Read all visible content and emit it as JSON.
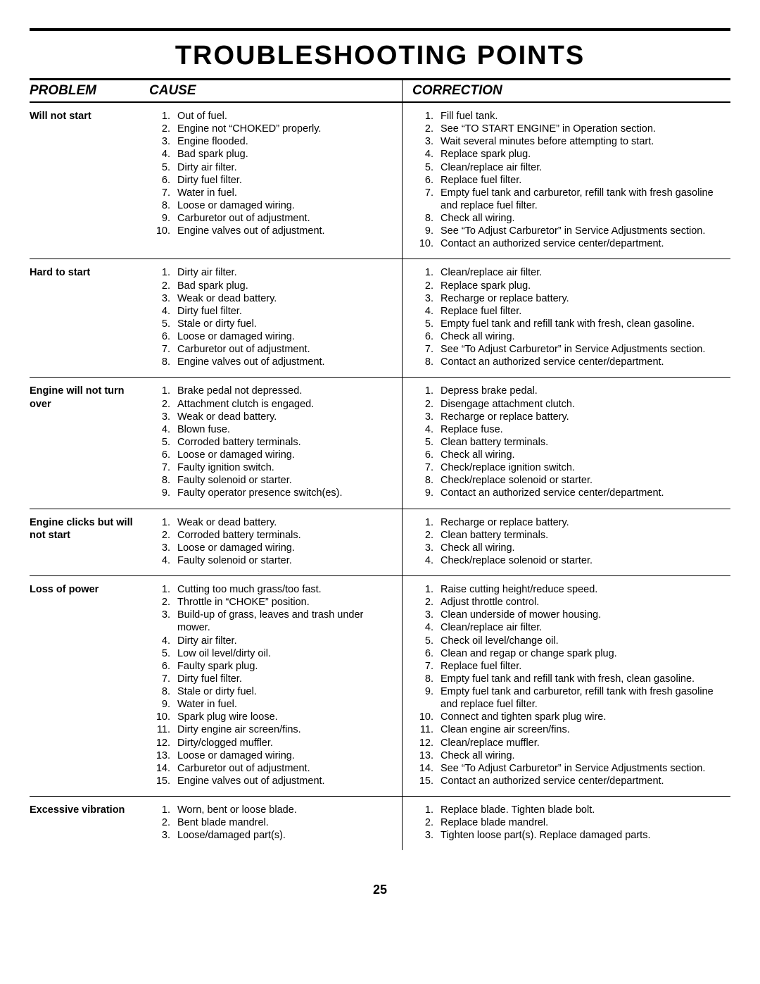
{
  "page_title": "TROUBLESHOOTING POINTS",
  "page_number": "25",
  "columns": {
    "problem": "PROBLEM",
    "cause": "CAUSE",
    "correction": "CORRECTION"
  },
  "rows": [
    {
      "problem": "Will not start",
      "causes": [
        "Out of fuel.",
        "Engine not “CHOKED” properly.",
        "Engine flooded.",
        "Bad spark plug.",
        "Dirty air filter.",
        "Dirty fuel filter.",
        "Water in fuel.",
        "Loose or damaged wiring.",
        "Carburetor out of adjustment.",
        "Engine valves out of adjustment."
      ],
      "corrections": [
        "Fill fuel tank.",
        "See “TO START ENGINE” in Operation section.",
        "Wait several minutes before attempting to start.",
        "Replace spark plug.",
        "Clean/replace air filter.",
        "Replace fuel filter.",
        "Empty fuel tank and carburetor, refill tank with fresh gasoline and replace fuel filter.",
        "Check all wiring.",
        "See “To Adjust Carburetor” in Service Adjustments section.",
        "Contact an authorized service center/department."
      ]
    },
    {
      "problem": "Hard to start",
      "causes": [
        "Dirty air filter.",
        "Bad spark plug.",
        "Weak or dead battery.",
        "Dirty fuel filter.",
        "Stale or dirty fuel.",
        "Loose or damaged wiring.",
        "Carburetor out of adjustment.",
        "Engine valves out of adjustment."
      ],
      "corrections": [
        "Clean/replace air filter.",
        "Replace spark plug.",
        "Recharge or replace battery.",
        "Replace fuel filter.",
        "Empty fuel tank and refill tank with fresh, clean gasoline.",
        "Check all wiring.",
        "See “To Adjust Carburetor” in Service Adjustments section.",
        "Contact an authorized service center/department."
      ]
    },
    {
      "problem": "Engine will not turn over",
      "causes": [
        "Brake pedal not depressed.",
        "Attachment clutch is engaged.",
        "Weak or dead battery.",
        "Blown fuse.",
        "Corroded battery terminals.",
        "Loose or damaged wiring.",
        "Faulty ignition switch.",
        "Faulty solenoid or starter.",
        "Faulty operator presence switch(es)."
      ],
      "corrections": [
        "Depress brake pedal.",
        "Disengage attachment clutch.",
        "Recharge or replace battery.",
        "Replace fuse.",
        "Clean battery terminals.",
        "Check all wiring.",
        "Check/replace ignition switch.",
        "Check/replace solenoid or starter.",
        "Contact an authorized service center/department."
      ]
    },
    {
      "problem": "Engine clicks but will not start",
      "causes": [
        "Weak or dead battery.",
        "Corroded battery terminals.",
        "Loose or damaged wiring.",
        "Faulty solenoid or starter."
      ],
      "corrections": [
        "Recharge or replace battery.",
        "Clean battery terminals.",
        "Check all wiring.",
        "Check/replace solenoid or starter."
      ]
    },
    {
      "problem": "Loss of power",
      "causes": [
        "Cutting too much grass/too fast.",
        "Throttle in “CHOKE” position.",
        "Build-up of grass, leaves and trash under mower.",
        "Dirty air filter.",
        "Low oil level/dirty oil.",
        "Faulty spark plug.",
        "Dirty fuel filter.",
        "Stale or dirty fuel.",
        "Water in fuel.",
        "Spark plug wire loose.",
        "Dirty engine air screen/fins.",
        "Dirty/clogged muffler.",
        "Loose or damaged wiring.",
        "Carburetor out of adjustment.",
        "Engine valves out of adjustment."
      ],
      "corrections": [
        "Raise cutting height/reduce speed.",
        "Adjust throttle control.",
        "Clean underside of mower housing.",
        "Clean/replace air filter.",
        "Check oil level/change oil.",
        "Clean and regap or change spark plug.",
        "Replace fuel filter.",
        "Empty fuel tank and refill tank with fresh, clean gasoline.",
        "Empty fuel tank and carburetor, refill tank with fresh gasoline and replace fuel filter.",
        "Connect and tighten spark plug wire.",
        "Clean engine air screen/fins.",
        "Clean/replace muffler.",
        "Check all wiring.",
        "See “To Adjust Carburetor” in Service Adjustments section.",
        "Contact an authorized service center/department."
      ]
    },
    {
      "problem": "Excessive vibration",
      "causes": [
        "Worn, bent or loose blade.",
        "Bent blade mandrel.",
        "Loose/damaged part(s)."
      ],
      "corrections": [
        "Replace blade.  Tighten blade bolt.",
        "Replace blade mandrel.",
        "Tighten loose part(s).  Replace damaged parts."
      ]
    }
  ]
}
